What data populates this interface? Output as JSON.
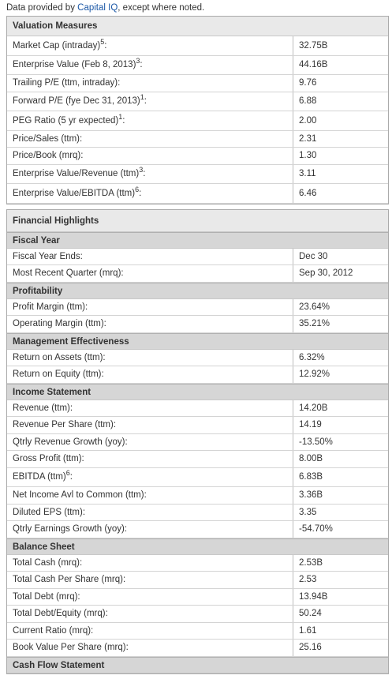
{
  "header": {
    "parts": [
      "Data provided by ",
      "Capital IQ",
      ", except where noted."
    ]
  },
  "tables": [
    {
      "title": "Valuation Measures",
      "sections": [
        {
          "rows": [
            {
              "label": "Market Cap (intraday)",
              "note": "5",
              "suffix": ":",
              "value": "32.75B"
            },
            {
              "label": "Enterprise Value (Feb 8, 2013)",
              "note": "3",
              "suffix": ":",
              "value": "44.16B"
            },
            {
              "label": "Trailing P/E (ttm, intraday):",
              "value": "9.76"
            },
            {
              "label": "Forward P/E (fye Dec 31, 2013)",
              "note": "1",
              "suffix": ":",
              "value": "6.88"
            },
            {
              "label": "PEG Ratio (5 yr expected)",
              "note": "1",
              "suffix": ":",
              "value": "2.00"
            },
            {
              "label": "Price/Sales (ttm):",
              "value": "2.31"
            },
            {
              "label": "Price/Book (mrq):",
              "value": "1.30"
            },
            {
              "label": "Enterprise Value/Revenue (ttm)",
              "note": "3",
              "suffix": ":",
              "value": "3.11"
            },
            {
              "label": "Enterprise Value/EBITDA (ttm)",
              "note": "6",
              "suffix": ":",
              "value": "6.46"
            }
          ]
        }
      ]
    },
    {
      "title": "Financial Highlights",
      "sections": [
        {
          "title": "Fiscal Year",
          "rows": [
            {
              "label": "Fiscal Year Ends:",
              "value": "Dec 30"
            },
            {
              "label": "Most Recent Quarter (mrq):",
              "value": "Sep 30, 2012"
            }
          ]
        },
        {
          "title": "Profitability",
          "rows": [
            {
              "label": "Profit Margin (ttm):",
              "value": "23.64%"
            },
            {
              "label": "Operating Margin (ttm):",
              "value": "35.21%"
            }
          ]
        },
        {
          "title": "Management Effectiveness",
          "rows": [
            {
              "label": "Return on Assets (ttm):",
              "value": "6.32%"
            },
            {
              "label": "Return on Equity (ttm):",
              "value": "12.92%"
            }
          ]
        },
        {
          "title": "Income Statement",
          "rows": [
            {
              "label": "Revenue (ttm):",
              "value": "14.20B"
            },
            {
              "label": "Revenue Per Share (ttm):",
              "value": "14.19"
            },
            {
              "label": "Qtrly Revenue Growth (yoy):",
              "value": "-13.50%"
            },
            {
              "label": "Gross Profit (ttm):",
              "value": "8.00B"
            },
            {
              "label": "EBITDA (ttm)",
              "note": "6",
              "suffix": ":",
              "value": "6.83B"
            },
            {
              "label": "Net Income Avl to Common (ttm):",
              "value": "3.36B"
            },
            {
              "label": "Diluted EPS (ttm):",
              "value": "3.35"
            },
            {
              "label": "Qtrly Earnings Growth (yoy):",
              "value": "-54.70%"
            }
          ]
        },
        {
          "title": "Balance Sheet",
          "rows": [
            {
              "label": "Total Cash (mrq):",
              "value": "2.53B"
            },
            {
              "label": "Total Cash Per Share (mrq):",
              "value": "2.53"
            },
            {
              "label": "Total Debt (mrq):",
              "value": "13.94B"
            },
            {
              "label": "Total Debt/Equity (mrq):",
              "value": "50.24"
            },
            {
              "label": "Current Ratio (mrq):",
              "value": "1.61"
            },
            {
              "label": "Book Value Per Share (mrq):",
              "value": "25.16"
            }
          ]
        },
        {
          "title": "Cash Flow Statement",
          "rows": []
        }
      ]
    }
  ]
}
